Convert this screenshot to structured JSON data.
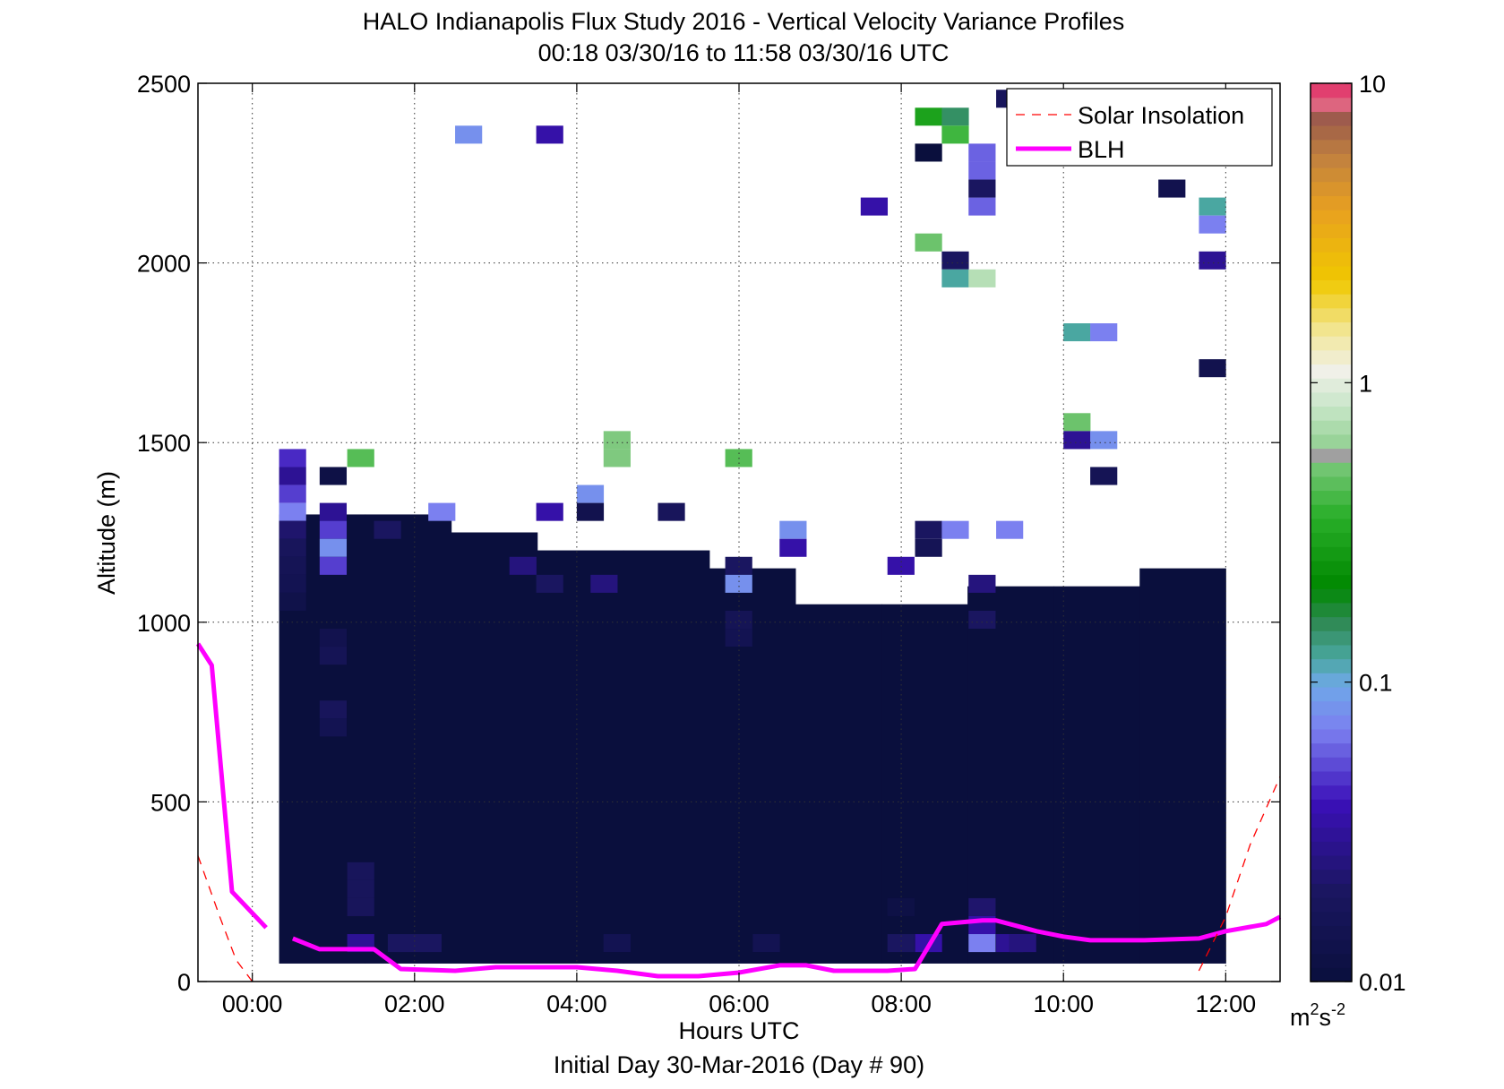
{
  "chart_data": {
    "type": "heatmap",
    "title": "HALO Indianapolis Flux Study 2016 - Vertical Velocity Variance Profiles",
    "subtitle": "00:18 03/30/16 to 11:58 03/30/16  UTC",
    "xlabel": "Hours UTC",
    "xlabel2": "Initial Day 30-Mar-2016 (Day # 90)",
    "ylabel": "Altitude (m)",
    "xlim": [
      -0.67,
      12.67
    ],
    "ylim": [
      0,
      2500
    ],
    "x_ticks": [
      0,
      2,
      4,
      6,
      8,
      10,
      12
    ],
    "x_tick_labels": [
      "00:00",
      "02:00",
      "04:00",
      "06:00",
      "08:00",
      "10:00",
      "12:00"
    ],
    "y_ticks": [
      0,
      500,
      1000,
      1500,
      2000,
      2500
    ],
    "y_tick_labels": [
      "0",
      "500",
      "1000",
      "1500",
      "2000",
      "2500"
    ],
    "grid": true,
    "legend_position": "top-right",
    "legend": [
      "Solar Insolation",
      "BLH"
    ],
    "colorbar": {
      "scale": "log",
      "min": 0.01,
      "max": 10,
      "ticks": [
        0.01,
        0.1,
        1,
        10
      ],
      "tick_labels": [
        "0.01",
        "0.1",
        "1",
        "10"
      ],
      "unit_base": "m",
      "unit_exp1": "2",
      "unit_mid": "s",
      "unit_exp2": "-2"
    },
    "series": [
      {
        "name": "BLH",
        "color": "#ff00ff",
        "segments": [
          [
            [
              -0.67,
              940
            ],
            [
              -0.5,
              880
            ],
            [
              -0.25,
              250
            ],
            [
              0.17,
              150
            ]
          ],
          [
            [
              0.5,
              120
            ],
            [
              0.83,
              90
            ],
            [
              1.5,
              90
            ],
            [
              1.83,
              35
            ],
            [
              2.5,
              30
            ],
            [
              3.0,
              40
            ],
            [
              3.5,
              40
            ],
            [
              4.0,
              40
            ],
            [
              4.5,
              30
            ],
            [
              5.0,
              15
            ],
            [
              5.5,
              15
            ],
            [
              6.0,
              25
            ],
            [
              6.5,
              45
            ],
            [
              6.83,
              45
            ],
            [
              7.17,
              30
            ],
            [
              7.83,
              30
            ],
            [
              8.17,
              35
            ],
            [
              8.5,
              160
            ],
            [
              9.0,
              170
            ],
            [
              9.17,
              170
            ],
            [
              9.67,
              140
            ],
            [
              10.0,
              125
            ],
            [
              10.33,
              115
            ],
            [
              11.0,
              115
            ],
            [
              11.67,
              120
            ],
            [
              12.0,
              140
            ],
            [
              12.5,
              160
            ],
            [
              12.67,
              180
            ]
          ]
        ]
      },
      {
        "name": "Solar Insolation",
        "color": "#ff0000",
        "segments": [
          [
            [
              -0.67,
              350
            ],
            [
              -0.4,
              180
            ],
            [
              -0.2,
              60
            ],
            [
              0.0,
              0
            ]
          ],
          [
            [
              11.67,
              30
            ],
            [
              12.0,
              180
            ],
            [
              12.3,
              380
            ],
            [
              12.67,
              570
            ]
          ]
        ]
      }
    ],
    "background_fill": {
      "x_range": [
        0.33,
        12.0
      ],
      "top_profile_levels": [
        1300,
        1300,
        1250,
        1200,
        1200,
        1150,
        1050,
        1050,
        1100,
        1100,
        1150
      ],
      "value": 0.01
    },
    "cells": [
      [
        0.33,
        1466,
        0.045
      ],
      [
        0.33,
        1416,
        0.03
      ],
      [
        0.33,
        1366,
        0.05
      ],
      [
        0.33,
        1316,
        0.07
      ],
      [
        0.33,
        1266,
        0.022
      ],
      [
        0.33,
        1216,
        0.018
      ],
      [
        0.33,
        1166,
        0.016
      ],
      [
        0.33,
        1116,
        0.015
      ],
      [
        0.33,
        1066,
        0.013
      ],
      [
        0.83,
        1416,
        0.012
      ],
      [
        0.83,
        1316,
        0.03
      ],
      [
        0.83,
        1266,
        0.05
      ],
      [
        0.83,
        1216,
        0.08
      ],
      [
        0.83,
        1166,
        0.05
      ],
      [
        0.83,
        966,
        0.014
      ],
      [
        0.83,
        916,
        0.016
      ],
      [
        0.83,
        766,
        0.018
      ],
      [
        0.83,
        716,
        0.015
      ],
      [
        1.17,
        1466,
        0.45
      ],
      [
        1.17,
        316,
        0.018
      ],
      [
        1.17,
        266,
        0.018
      ],
      [
        1.17,
        216,
        0.018
      ],
      [
        1.17,
        116,
        0.03
      ],
      [
        1.5,
        1266,
        0.02
      ],
      [
        1.67,
        116,
        0.02
      ],
      [
        2.0,
        116,
        0.02
      ],
      [
        2.17,
        1316,
        0.07
      ],
      [
        2.5,
        2366,
        0.08
      ],
      [
        3.17,
        1166,
        0.025
      ],
      [
        3.5,
        2366,
        0.035
      ],
      [
        3.5,
        1316,
        0.035
      ],
      [
        3.5,
        1116,
        0.02
      ],
      [
        4.0,
        1366,
        0.08
      ],
      [
        4.0,
        1316,
        0.014
      ],
      [
        4.17,
        1116,
        0.025
      ],
      [
        4.33,
        1516,
        0.55
      ],
      [
        4.33,
        1466,
        0.55
      ],
      [
        4.33,
        116,
        0.015
      ],
      [
        5.0,
        1316,
        0.018
      ],
      [
        5.83,
        1466,
        0.45
      ],
      [
        5.83,
        1166,
        0.02
      ],
      [
        5.83,
        1116,
        0.08
      ],
      [
        5.83,
        1016,
        0.016
      ],
      [
        5.83,
        966,
        0.015
      ],
      [
        6.5,
        1266,
        0.08
      ],
      [
        6.5,
        1216,
        0.035
      ],
      [
        6.17,
        116,
        0.015
      ],
      [
        7.5,
        2166,
        0.035
      ],
      [
        7.83,
        1166,
        0.035
      ],
      [
        7.83,
        216,
        0.012
      ],
      [
        7.83,
        116,
        0.02
      ],
      [
        8.17,
        2416,
        0.3
      ],
      [
        8.17,
        2316,
        0.01
      ],
      [
        8.17,
        2066,
        0.5
      ],
      [
        8.17,
        1266,
        0.02
      ],
      [
        8.17,
        1216,
        0.016
      ],
      [
        8.17,
        116,
        0.035
      ],
      [
        8.5,
        2416,
        0.15
      ],
      [
        8.5,
        2366,
        0.4
      ],
      [
        8.5,
        2016,
        0.02
      ],
      [
        8.5,
        1966,
        0.12
      ],
      [
        8.5,
        1266,
        0.07
      ],
      [
        8.83,
        2316,
        0.06
      ],
      [
        8.83,
        2266,
        0.06
      ],
      [
        8.83,
        2166,
        0.06
      ],
      [
        8.83,
        2216,
        0.02
      ],
      [
        8.83,
        1966,
        0.75
      ],
      [
        8.83,
        1116,
        0.025
      ],
      [
        8.83,
        1016,
        0.02
      ],
      [
        8.83,
        216,
        0.022
      ],
      [
        8.83,
        166,
        0.035
      ],
      [
        8.83,
        116,
        0.07
      ],
      [
        9.17,
        2466,
        0.018
      ],
      [
        9.17,
        1266,
        0.07
      ],
      [
        9.17,
        116,
        0.03
      ],
      [
        9.33,
        116,
        0.025
      ],
      [
        10.0,
        1816,
        0.12
      ],
      [
        10.0,
        1566,
        0.5
      ],
      [
        10.0,
        1516,
        0.03
      ],
      [
        10.33,
        1816,
        0.07
      ],
      [
        10.33,
        1516,
        0.08
      ],
      [
        10.33,
        1416,
        0.016
      ],
      [
        11.17,
        2216,
        0.014
      ],
      [
        11.67,
        2166,
        0.12
      ],
      [
        11.67,
        2116,
        0.07
      ],
      [
        11.67,
        2016,
        0.03
      ],
      [
        11.67,
        1716,
        0.014
      ]
    ]
  }
}
